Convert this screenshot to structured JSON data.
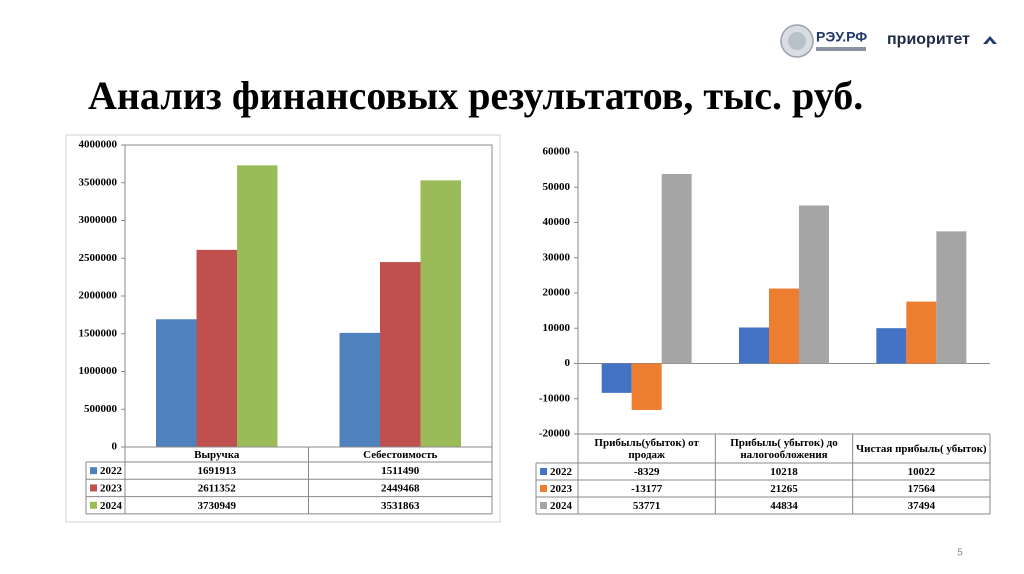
{
  "header": {
    "logos": [
      "РЭУ.РФ",
      "приоритет"
    ],
    "title": "Анализ финансовых результатов, тыс. руб."
  },
  "chart_data": [
    {
      "type": "bar",
      "categories": [
        "Выручка",
        "Себестоимость"
      ],
      "series": [
        {
          "name": "2022",
          "color": "#4f81bd",
          "values": [
            1691913,
            1511490
          ]
        },
        {
          "name": "2023",
          "color": "#c0504d",
          "values": [
            2611352,
            2449468
          ]
        },
        {
          "name": "2024",
          "color": "#9bbb59",
          "values": [
            3730949,
            3531863
          ]
        }
      ],
      "ylim": [
        0,
        4000000
      ],
      "yticks": [
        0,
        500000,
        1000000,
        1500000,
        2000000,
        2500000,
        3000000,
        3500000,
        4000000
      ],
      "grid": false
    },
    {
      "type": "bar",
      "categories": [
        "Прибыль(убыток) от продаж",
        "Прибыль( убыток) до налогообложения",
        "Чистая прибыль( убыток)"
      ],
      "series": [
        {
          "name": "2022",
          "color": "#4472c4",
          "values": [
            -8329,
            10218,
            10022
          ]
        },
        {
          "name": "2023",
          "color": "#ed7d31",
          "values": [
            -13177,
            21265,
            17564
          ]
        },
        {
          "name": "2024",
          "color": "#a5a5a5",
          "values": [
            53771,
            44834,
            37494
          ]
        }
      ],
      "ylim": [
        -20000,
        60000
      ],
      "yticks": [
        -20000,
        -10000,
        0,
        10000,
        20000,
        30000,
        40000,
        50000,
        60000
      ],
      "grid": false
    }
  ],
  "footer": {
    "page_number": "5"
  }
}
